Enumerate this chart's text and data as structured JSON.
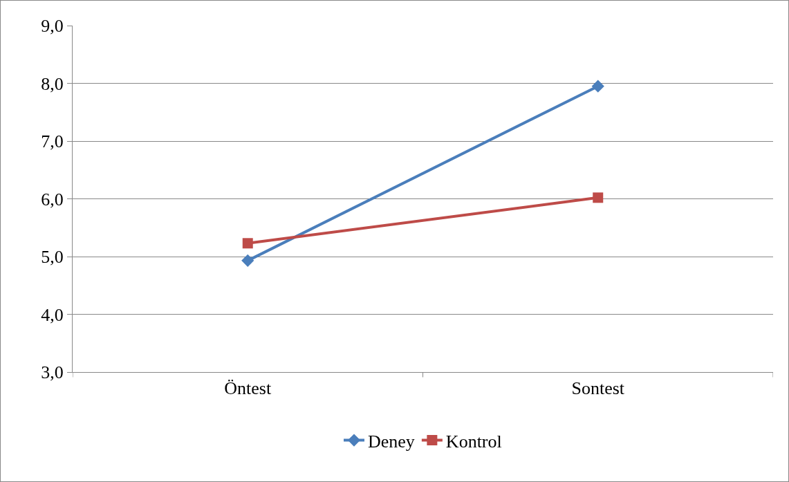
{
  "chart_data": {
    "type": "line",
    "categories": [
      "Öntest",
      "Sontest"
    ],
    "series": [
      {
        "name": "Deney",
        "color": "#4a7ebb",
        "values": [
          4.93,
          7.95
        ],
        "marker": "diamond"
      },
      {
        "name": "Kontrol",
        "color": "#be4b48",
        "values": [
          5.23,
          6.02
        ],
        "marker": "square"
      }
    ],
    "ylim": [
      3,
      9
    ],
    "yticks": [
      {
        "value": 3,
        "label": "3,0"
      },
      {
        "value": 4,
        "label": "4,0"
      },
      {
        "value": 5,
        "label": "5,0"
      },
      {
        "value": 6,
        "label": "6,0"
      },
      {
        "value": 7,
        "label": "7,0"
      },
      {
        "value": 8,
        "label": "8,0"
      },
      {
        "value": 9,
        "label": "9,0"
      }
    ],
    "grid": "y",
    "legend": "bottom",
    "line_style": "solid"
  }
}
